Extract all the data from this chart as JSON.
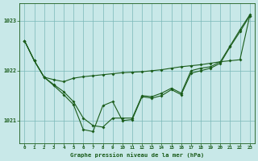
{
  "title": "Graphe pression niveau de la mer (hPa)",
  "bg_color": "#c8e8e8",
  "line_color": "#1a5c1a",
  "grid_color": "#7ab8b8",
  "ylim": [
    1020.55,
    1023.35
  ],
  "xlim": [
    -0.5,
    23.5
  ],
  "yticks": [
    1021,
    1022,
    1023
  ],
  "xticks": [
    0,
    1,
    2,
    3,
    4,
    5,
    6,
    7,
    8,
    9,
    10,
    11,
    12,
    13,
    14,
    15,
    16,
    17,
    18,
    19,
    20,
    21,
    22,
    23
  ],
  "line_upper": [
    1022.6,
    1022.2,
    1021.87,
    1021.82,
    1021.78,
    1021.85,
    1021.88,
    1021.9,
    1021.92,
    1021.94,
    1021.96,
    1021.97,
    1021.98,
    1022.0,
    1022.02,
    1022.05,
    1022.08,
    1022.1,
    1022.12,
    1022.15,
    1022.18,
    1022.2,
    1022.22,
    1023.1
  ],
  "line_mid": [
    1022.6,
    1022.2,
    1021.87,
    1021.72,
    1021.58,
    1021.38,
    1021.05,
    1020.9,
    1020.87,
    1021.05,
    1021.05,
    1021.05,
    1021.5,
    1021.48,
    1021.55,
    1021.65,
    1021.55,
    1022.0,
    1022.05,
    1022.08,
    1022.18,
    1022.5,
    1022.82,
    1023.12
  ],
  "line_low": [
    1022.6,
    1022.2,
    1021.87,
    1021.7,
    1021.52,
    1021.32,
    1020.82,
    1020.78,
    1021.3,
    1021.38,
    1021.0,
    1021.02,
    1021.48,
    1021.45,
    1021.5,
    1021.62,
    1021.52,
    1021.95,
    1022.0,
    1022.05,
    1022.15,
    1022.48,
    1022.78,
    1023.1
  ]
}
